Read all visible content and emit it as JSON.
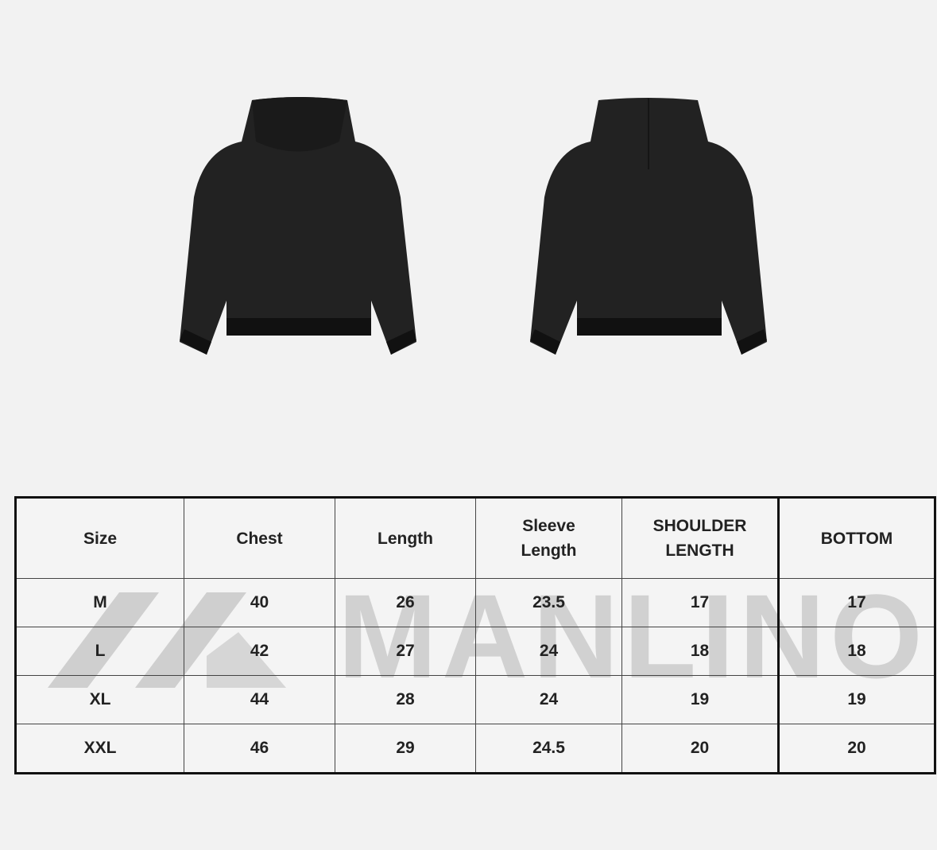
{
  "images": {
    "front": "hoodie-front",
    "back": "hoodie-back",
    "garment_color": "#1f1f1f"
  },
  "watermark": {
    "text": "MANLINO"
  },
  "table": {
    "headers": [
      "Size",
      "Chest",
      "Length",
      "Sleeve Length",
      "SHOULDER LENGTH",
      "BOTTOM"
    ],
    "rows": [
      [
        "M",
        "40",
        "26",
        "23.5",
        "17",
        "17"
      ],
      [
        "L",
        "42",
        "27",
        "24",
        "18",
        "18"
      ],
      [
        "XL",
        "44",
        "28",
        "24",
        "19",
        "19"
      ],
      [
        "XXL",
        "46",
        "29",
        "24.5",
        "20",
        "20"
      ]
    ]
  }
}
